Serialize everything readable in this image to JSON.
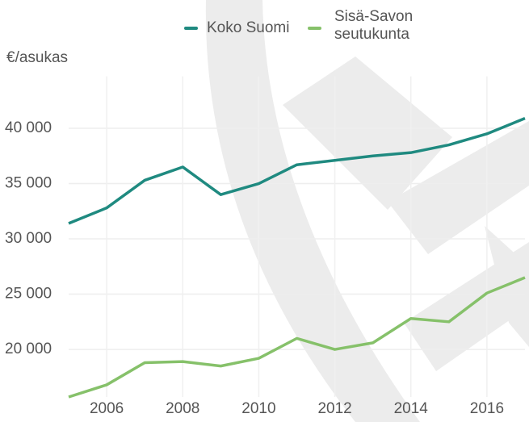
{
  "chart_data": {
    "type": "line",
    "y_axis_label": "€/asukas",
    "x": [
      2005,
      2006,
      2007,
      2008,
      2009,
      2010,
      2011,
      2012,
      2013,
      2014,
      2015,
      2016,
      2017
    ],
    "series": [
      {
        "name": "Koko Suomi",
        "color": "#1f8a80",
        "values": [
          31400,
          32800,
          35300,
          36500,
          34000,
          35000,
          36700,
          37100,
          37500,
          37800,
          38500,
          39500,
          40900
        ]
      },
      {
        "name": "Sisä-Savon seutukunta",
        "color": "#86c16a",
        "values": [
          15700,
          16800,
          18800,
          18900,
          18500,
          19200,
          21000,
          20000,
          20600,
          22800,
          22500,
          25100,
          26500
        ]
      }
    ],
    "xlim": [
      2005,
      2017
    ],
    "xticks": [
      2006,
      2008,
      2010,
      2012,
      2014,
      2016
    ],
    "ylim": [
      15700,
      44700
    ],
    "yticks": [
      {
        "value": 20000,
        "label": "20 000"
      },
      {
        "value": 25000,
        "label": "25 000"
      },
      {
        "value": 30000,
        "label": "30 000"
      },
      {
        "value": 35000,
        "label": "35 000"
      },
      {
        "value": 40000,
        "label": "40 000"
      }
    ],
    "grid": true
  }
}
